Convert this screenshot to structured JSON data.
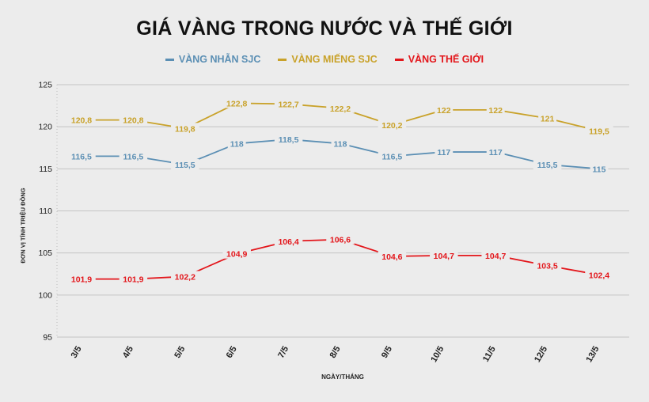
{
  "chart_data": {
    "type": "line",
    "title": "GIÁ VÀNG TRONG NƯỚC VÀ THẾ GIỚI",
    "xlabel": "NGÀY/THÁNG",
    "ylabel": "ĐƠN VỊ TÍNH TRIỆU ĐỒNG",
    "categories": [
      "3/5",
      "4/5",
      "5/5",
      "6/5",
      "7/5",
      "8/5",
      "9/5",
      "10/5",
      "11/5",
      "12/5",
      "13/5"
    ],
    "ylim": [
      95,
      125
    ],
    "yticks": [
      95,
      100,
      105,
      110,
      115,
      120,
      125
    ],
    "grid": true,
    "legend_position": "top-center",
    "series": [
      {
        "name": "VÀNG NHẪN SJC",
        "color": "#5b8fb4",
        "values": [
          116.5,
          116.5,
          115.5,
          118,
          118.5,
          118,
          116.5,
          117,
          117,
          115.5,
          115
        ],
        "labels": [
          "116,5",
          "116,5",
          "115,5",
          "118",
          "118,5",
          "118",
          "116,5",
          "117",
          "117",
          "115,5",
          "115"
        ]
      },
      {
        "name": "VÀNG MIẾNG SJC",
        "color": "#c9a22a",
        "values": [
          120.8,
          120.8,
          119.8,
          122.8,
          122.7,
          122.2,
          120.2,
          122,
          122,
          121,
          119.5
        ],
        "labels": [
          "120,8",
          "120,8",
          "119,8",
          "122,8",
          "122,7",
          "122,2",
          "120,2",
          "122",
          "122",
          "121",
          "119,5"
        ]
      },
      {
        "name": "VÀNG THẾ GIỚI",
        "color": "#e3161b",
        "values": [
          101.9,
          101.9,
          102.2,
          104.9,
          106.4,
          106.6,
          104.6,
          104.7,
          104.7,
          103.5,
          102.4
        ],
        "labels": [
          "101,9",
          "101,9",
          "102,2",
          "104,9",
          "106,4",
          "106,6",
          "104,6",
          "104,7",
          "104,7",
          "103,5",
          "102,4"
        ]
      }
    ]
  }
}
